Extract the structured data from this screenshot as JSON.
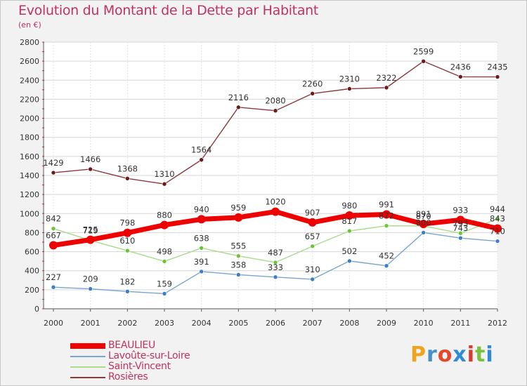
{
  "title": "Evolution du Montant de la Dette par Habitant",
  "subtitle": "(en €)",
  "brand": {
    "text": "Proxiti",
    "letter_colors": [
      "#f0a31c",
      "#4a90c8",
      "#e5472d",
      "#2f8ad8",
      "#d93a2b",
      "#7ac142",
      "#2f8ad8"
    ]
  },
  "chart_data": {
    "type": "line",
    "x": [
      "2000",
      "2001",
      "2002",
      "2003",
      "2004",
      "2005",
      "2006",
      "2007",
      "2008",
      "2009",
      "2010",
      "2011",
      "2012"
    ],
    "ylim": [
      0,
      2800
    ],
    "yticks": [
      "0",
      "200",
      "400",
      "600",
      "800",
      "1000",
      "1200",
      "1400",
      "1600",
      "1800",
      "2000",
      "2200",
      "2400",
      "2600",
      "2800"
    ],
    "grid": true,
    "legend_position": "bottom-left",
    "series": [
      {
        "name": "BEAULIEU",
        "color": "#ee0000",
        "marker_color": "#ee0000",
        "emphasis": true,
        "values": [
          667,
          725,
          798,
          880,
          940,
          959,
          1020,
          907,
          980,
          991,
          891,
          933,
          843
        ],
        "labels": [
          "667",
          "725",
          "798",
          "880",
          "940",
          "959",
          "1020",
          "907",
          "980",
          "991",
          "891",
          "933",
          "843"
        ]
      },
      {
        "name": "Lavoûte-sur-Loire",
        "color": "#7aa5cf",
        "marker_color": "#3b7fc4",
        "emphasis": false,
        "values": [
          227,
          209,
          182,
          159,
          391,
          358,
          333,
          310,
          502,
          452,
          800,
          743,
          710
        ],
        "labels": [
          "227",
          "209",
          "182",
          "159",
          "391",
          "358",
          "333",
          "310",
          "502",
          "452",
          "800",
          "743",
          "710"
        ]
      },
      {
        "name": "Saint-Vincent",
        "color": "#a8db8a",
        "marker_color": "#6cc43b",
        "emphasis": false,
        "values": [
          842,
          719,
          610,
          498,
          638,
          555,
          487,
          657,
          817,
          872,
          870,
          793,
          944
        ],
        "labels": [
          "842",
          "719",
          "610",
          "498",
          "638",
          "555",
          "487",
          "657",
          "817",
          "872",
          "870",
          "793",
          "944"
        ]
      },
      {
        "name": "Rosières",
        "color": "#8b3a3a",
        "marker_color": "#6b1a1a",
        "emphasis": false,
        "values": [
          1429,
          1466,
          1368,
          1310,
          1564,
          2116,
          2080,
          2260,
          2310,
          2322,
          2599,
          2436,
          2435
        ],
        "labels": [
          "1429",
          "1466",
          "1368",
          "1310",
          "1564",
          "2116",
          "2080",
          "2260",
          "2310",
          "2322",
          "2599",
          "2436",
          "2435"
        ]
      }
    ]
  }
}
